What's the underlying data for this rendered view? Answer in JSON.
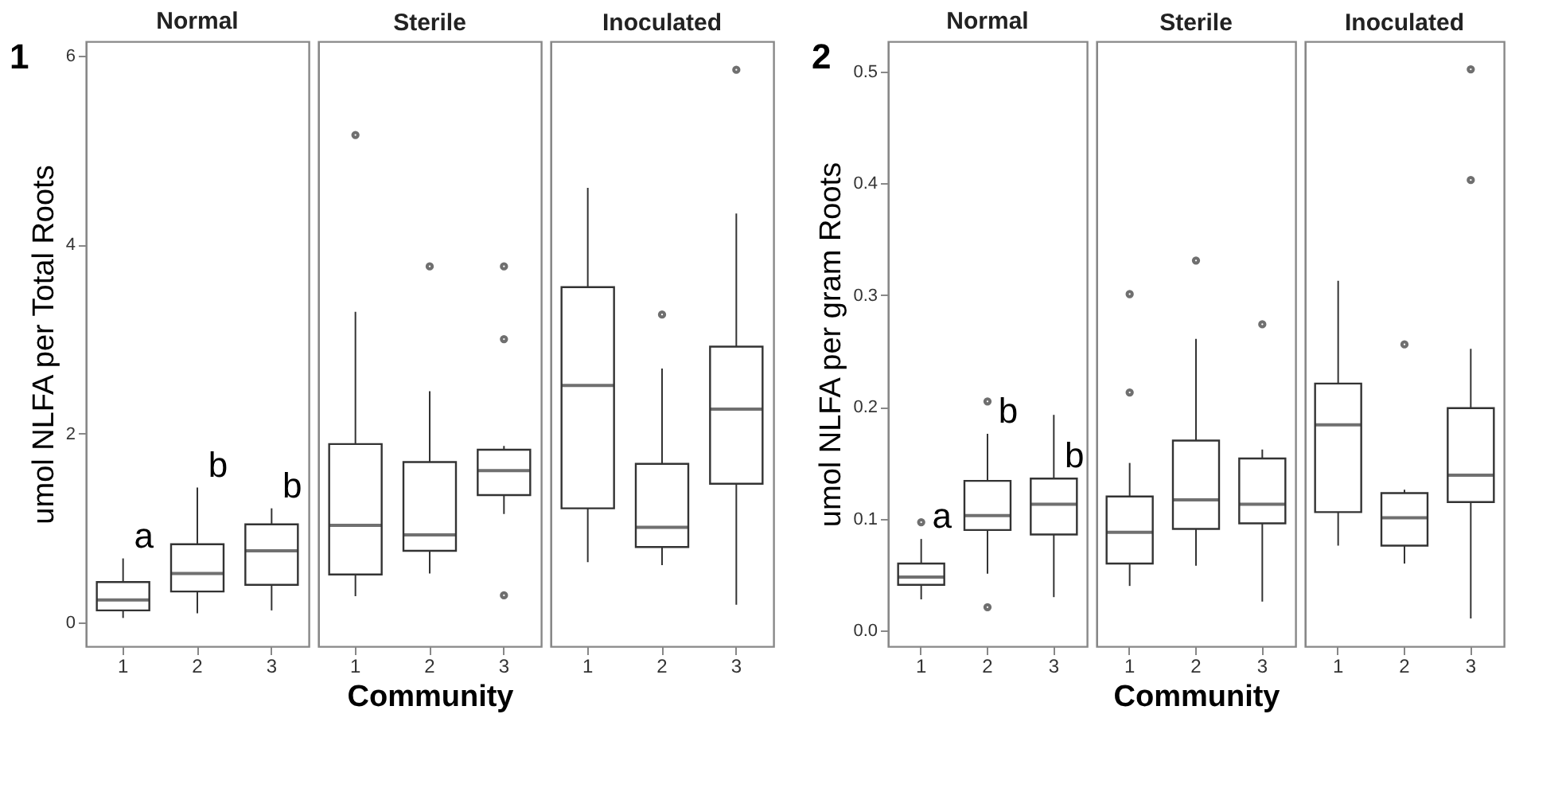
{
  "chart_data": [
    {
      "type": "box",
      "title": "Normal",
      "ylabel": "umol NLFA per Total Roots",
      "categories": [
        "1",
        "2",
        "3"
      ],
      "ylim": [
        -0.25,
        6.15
      ],
      "yticks": [
        0,
        2,
        4,
        6
      ],
      "boxes": [
        {
          "low": 0.05,
          "q1": 0.13,
          "median": 0.24,
          "q3": 0.43,
          "high": 0.68
        },
        {
          "low": 0.1,
          "q1": 0.33,
          "median": 0.52,
          "q3": 0.83,
          "high": 1.43
        },
        {
          "low": 0.13,
          "q1": 0.4,
          "median": 0.76,
          "q3": 1.04,
          "high": 1.21
        }
      ],
      "annotations": [
        "1",
        {
          "text": "a",
          "x": "1",
          "y": 0.68
        },
        {
          "text": "b",
          "x": "2",
          "y": 1.43
        },
        {
          "text": "b",
          "x": "3",
          "y": 1.21
        }
      ]
    },
    {
      "type": "box",
      "title": "Sterile",
      "xlabel": "Community",
      "categories": [
        "1",
        "2",
        "3"
      ],
      "ylim": [
        -0.25,
        6.15
      ],
      "tick_labels": "x",
      "boxes": [
        {
          "low": 0.28,
          "q1": 0.51,
          "median": 1.03,
          "q3": 1.89,
          "high": 3.29,
          "outliers": [
            5.16
          ]
        },
        {
          "low": 0.52,
          "q1": 0.76,
          "median": 0.93,
          "q3": 1.7,
          "high": 2.45,
          "outliers": [
            3.77
          ]
        },
        {
          "low": 1.15,
          "q1": 1.35,
          "median": 1.61,
          "q3": 1.83,
          "high": 1.87,
          "outliers": [
            3.77,
            3.0,
            0.29
          ]
        }
      ]
    },
    {
      "type": "box",
      "title": "Inoculated",
      "categories": [
        "1",
        "2",
        "3"
      ],
      "ylim": [
        -0.25,
        6.15
      ],
      "tick_labels": "x",
      "boxes": [
        {
          "low": 0.64,
          "q1": 1.21,
          "median": 2.51,
          "q3": 3.55,
          "high": 4.6
        },
        {
          "low": 0.61,
          "q1": 0.8,
          "median": 1.01,
          "q3": 1.68,
          "high": 2.69,
          "outliers": [
            3.26
          ]
        },
        {
          "low": 0.19,
          "q1": 1.47,
          "median": 2.26,
          "q3": 2.92,
          "high": 4.33,
          "outliers": [
            5.85
          ]
        }
      ]
    },
    {
      "type": "box",
      "title": "Normal",
      "ylabel": "umol NLFA per gram Roots",
      "categories": [
        "1",
        "2",
        "3"
      ],
      "ylim": [
        -0.014,
        0.527
      ],
      "yticks": [
        {
          "value": 0,
          "label": "0.0"
        },
        0.1,
        0.2,
        0.3,
        0.4,
        0.5
      ],
      "boxes": [
        {
          "low": 0.028,
          "q1": 0.041,
          "median": 0.048,
          "q3": 0.06,
          "high": 0.082,
          "outliers": [
            0.097
          ]
        },
        {
          "low": 0.051,
          "q1": 0.09,
          "median": 0.103,
          "q3": 0.134,
          "high": 0.176,
          "outliers": [
            0.205,
            0.021
          ]
        },
        {
          "low": 0.03,
          "q1": 0.086,
          "median": 0.113,
          "q3": 0.136,
          "high": 0.193
        }
      ],
      "annotations": [
        "2",
        {
          "text": "a",
          "x": "1",
          "y": 0.082
        },
        {
          "text": "b",
          "x": "2",
          "y": 0.176
        },
        {
          "text": "b",
          "x": "3",
          "y": 0.136
        }
      ]
    },
    {
      "type": "box",
      "title": "Sterile",
      "xlabel": "Community",
      "categories": [
        "1",
        "2",
        "3"
      ],
      "ylim": [
        -0.014,
        0.527
      ],
      "tick_labels": "x",
      "boxes": [
        {
          "low": 0.04,
          "q1": 0.06,
          "median": 0.088,
          "q3": 0.12,
          "high": 0.15,
          "outliers": [
            0.301,
            0.213
          ]
        },
        {
          "low": 0.058,
          "q1": 0.091,
          "median": 0.117,
          "q3": 0.17,
          "high": 0.261,
          "outliers": [
            0.331
          ]
        },
        {
          "low": 0.026,
          "q1": 0.096,
          "median": 0.113,
          "q3": 0.154,
          "high": 0.162,
          "outliers": [
            0.274
          ]
        }
      ]
    },
    {
      "type": "box",
      "title": "Inoculated",
      "categories": [
        "1",
        "2",
        "3"
      ],
      "ylim": [
        -0.014,
        0.527
      ],
      "tick_labels": "x",
      "boxes": [
        {
          "low": 0.076,
          "q1": 0.106,
          "median": 0.184,
          "q3": 0.221,
          "high": 0.313
        },
        {
          "low": 0.06,
          "q1": 0.076,
          "median": 0.101,
          "q3": 0.123,
          "high": 0.126,
          "outliers": [
            0.256
          ]
        },
        {
          "low": 0.011,
          "q1": 0.115,
          "median": 0.139,
          "q3": 0.199,
          "high": 0.252,
          "outliers": [
            0.502,
            0.403
          ]
        }
      ]
    }
  ]
}
